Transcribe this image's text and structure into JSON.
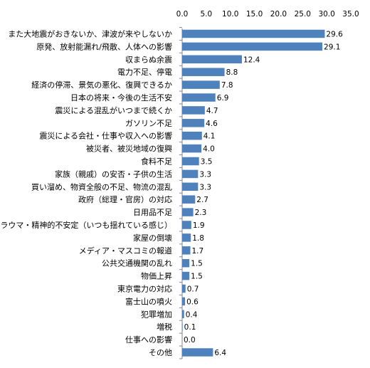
{
  "chart_data": {
    "type": "bar",
    "orientation": "horizontal",
    "title": "",
    "xlabel": "",
    "ylabel": "",
    "xlim": [
      0,
      35
    ],
    "x_ticks": [
      "0.0",
      "5.0",
      "10.0",
      "15.0",
      "20.0",
      "25.0",
      "30.0",
      "35.0"
    ],
    "x_axis_position": "top",
    "grid": false,
    "legend": "none",
    "bar_color": "#4F81BD",
    "categories": [
      "また大地震がおきないか、津波が来やしないか",
      "原発、放射能漏れ/飛散、人体への影響",
      "収まらぬ余震",
      "電力不足、停電",
      "経済の停滞、景気の悪化、復興できるか",
      "日本の将来・今後の生活不安",
      "震災による混乱がいつまで続くか",
      "ガソリン不足",
      "震災による会社・仕事や収入への影響",
      "被災者、被災地域の復興",
      "食料不足",
      "家族（親戚）の安否・子供の生活",
      "買い溜め、物資全般の不足、物流の混乱",
      "政府（総理・官房）の対応",
      "日用品不足",
      "トラウマ・精神的不安定（いつも揺れている感じ）",
      "家屋の倒壊",
      "メディア・マスコミの報道",
      "公共交通機関の乱れ",
      "物価上昇",
      "東京電力の対応",
      "富士山の噴火",
      "犯罪増加",
      "増税",
      "仕事への影響",
      "その他"
    ],
    "values": [
      29.6,
      29.1,
      12.4,
      8.8,
      7.8,
      6.9,
      4.7,
      4.6,
      4.1,
      4.0,
      3.5,
      3.3,
      3.3,
      2.7,
      2.3,
      1.9,
      1.8,
      1.7,
      1.5,
      1.5,
      0.7,
      0.6,
      0.4,
      0.1,
      0.0,
      6.4
    ],
    "data_labels": [
      "29.6",
      "29.1",
      "12.4",
      "8.8",
      "7.8",
      "6.9",
      "4.7",
      "4.6",
      "4.1",
      "4.0",
      "3.5",
      "3.3",
      "3.3",
      "2.7",
      "2.3",
      "1.9",
      "1.8",
      "1.7",
      "1.5",
      "1.5",
      "0.7",
      "0.6",
      "0.4",
      "0.1",
      "0.0",
      "6.4"
    ]
  }
}
